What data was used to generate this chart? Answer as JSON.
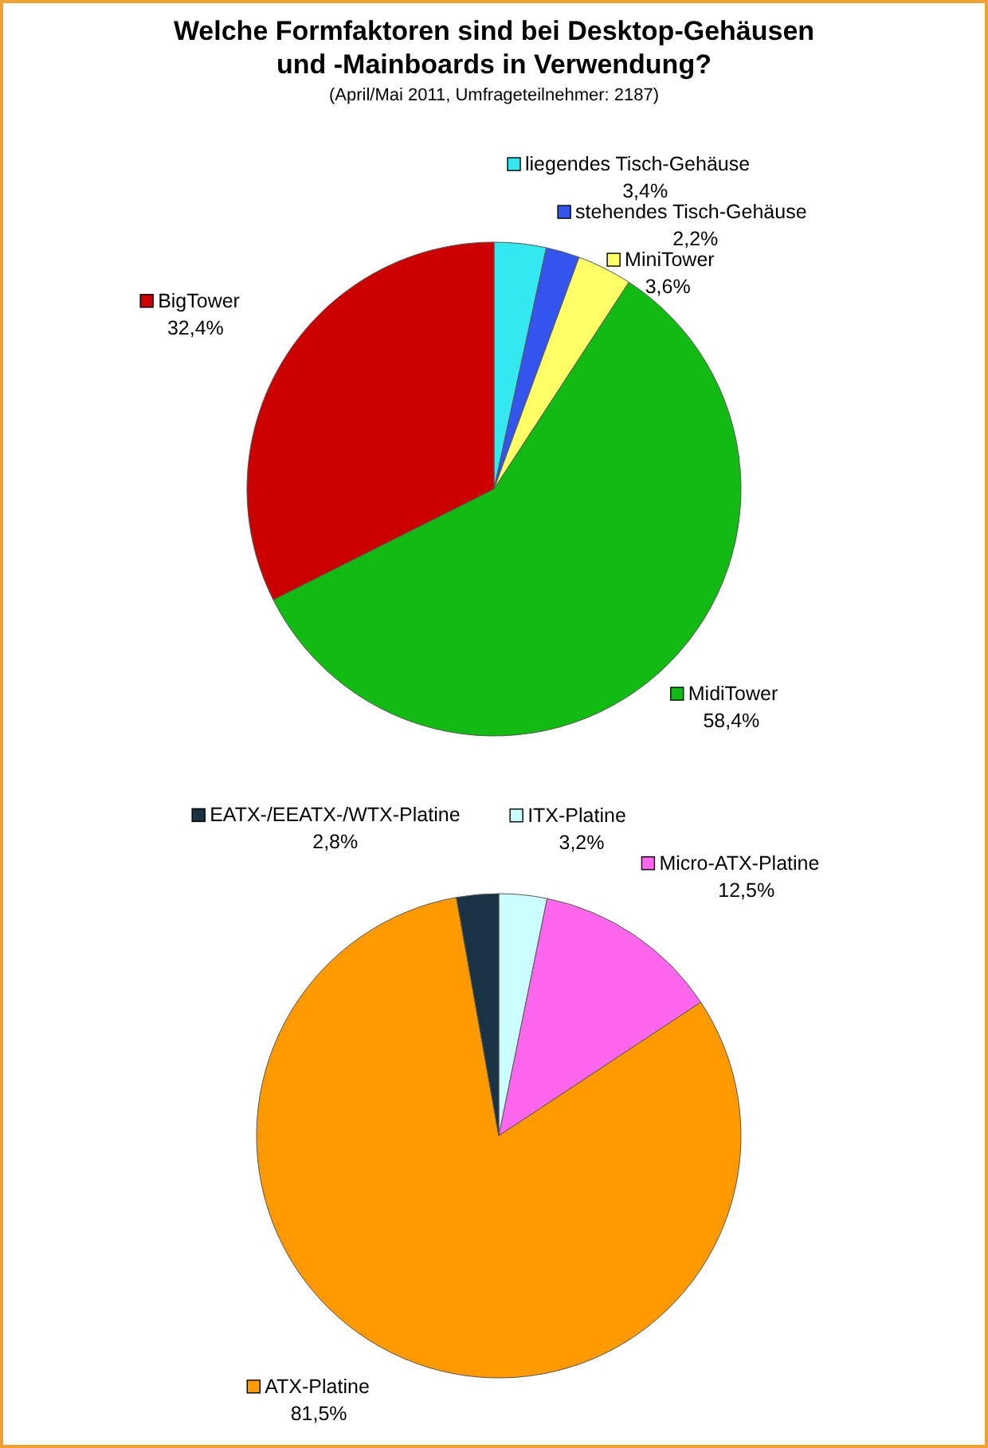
{
  "chart_data": [
    {
      "type": "pie",
      "title": "Welche Formfaktoren sind bei Desktop-Gehäusen und -Mainboards in Verwendung?",
      "subtitle": "(April/Mai 2011, Umfrageteilnehmer: 2187)",
      "categories": [
        "liegendes Tisch-Gehäuse",
        "stehendes Tisch-Gehäuse",
        "MiniTower",
        "MidiTower",
        "BigTower"
      ],
      "values": [
        3.4,
        2.2,
        3.6,
        58.4,
        32.4
      ],
      "value_labels": [
        "3,4%",
        "2,2%",
        "3,6%",
        "58,4%",
        "32,4%"
      ],
      "colors": [
        "#33e8ee",
        "#3355ee",
        "#ffff66",
        "#11bb11",
        "#cc0000"
      ],
      "legend": "top right"
    },
    {
      "type": "pie",
      "categories": [
        "ITX-Platine",
        "Micro-ATX-Platine",
        "ATX-Platine",
        "EATX-/EEATX-/WTX-Platine"
      ],
      "values": [
        3.2,
        12.5,
        81.5,
        2.8
      ],
      "value_labels": [
        "3,2%",
        "12,5%",
        "81,5%",
        "2,8%"
      ],
      "colors": [
        "#ccffff",
        "#ff66ee",
        "#ff9900",
        "#1a3344"
      ],
      "legend": "top right"
    }
  ]
}
